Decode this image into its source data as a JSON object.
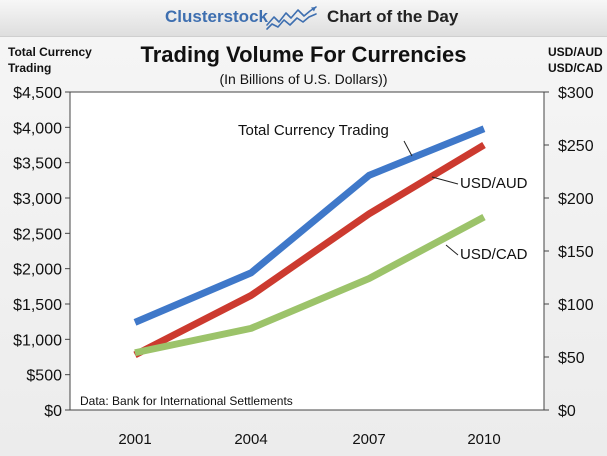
{
  "header": {
    "brand": "Clusterstock",
    "subtitle": "Chart of the Day",
    "logo_icon": "rising-chart-icon"
  },
  "colors": {
    "blue": "#3f78c9",
    "red": "#cc3a2f",
    "green": "#9cc36a",
    "brand_blue": "#3e6fb0"
  },
  "chart_data": {
    "type": "line",
    "title": "Trading Volume For Currencies",
    "subtitle": "(In Billions of U.S. Dollars))",
    "ylabel_left": "Total Currency Trading",
    "ylabel_right": "USD/AUD USD/CAD",
    "source": "Data: Bank for International Settlements",
    "categories": [
      "2001",
      "2004",
      "2007",
      "2010"
    ],
    "left_axis": {
      "ylim": [
        0,
        4500
      ],
      "ticks": [
        "$0",
        "$500",
        "$1,000",
        "$1,500",
        "$2,000",
        "$2,500",
        "$3,000",
        "$3,500",
        "$4,000",
        "$4,500"
      ],
      "tick_values": [
        0,
        500,
        1000,
        1500,
        2000,
        2500,
        3000,
        3500,
        4000,
        4500
      ]
    },
    "right_axis": {
      "ylim": [
        0,
        300
      ],
      "ticks": [
        "$0",
        "$50",
        "$100",
        "$150",
        "$200",
        "$250",
        "$300"
      ],
      "tick_values": [
        0,
        50,
        100,
        150,
        200,
        250,
        300
      ]
    },
    "grid": false,
    "series": [
      {
        "name": "Total Currency Trading",
        "axis": "left",
        "color": "#3f78c9",
        "values": [
          1240,
          1940,
          3320,
          3980
        ]
      },
      {
        "name": "USD/AUD",
        "axis": "right",
        "color": "#cc3a2f",
        "values": [
          52,
          108,
          185,
          250
        ]
      },
      {
        "name": "USD/CAD",
        "axis": "right",
        "color": "#9cc36a",
        "values": [
          54,
          77,
          124,
          182
        ]
      }
    ]
  }
}
